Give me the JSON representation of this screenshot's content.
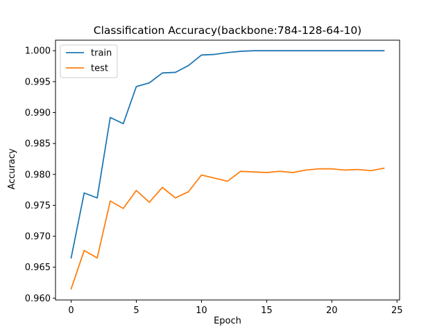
{
  "chart_data": {
    "type": "line",
    "title": "Classification Accuracy(backbone:784-128-64-10)",
    "xlabel": "Epoch",
    "ylabel": "Accuracy",
    "xlim": [
      -1.2,
      25.2
    ],
    "ylim": [
      0.9597,
      1.0017
    ],
    "xticks": [
      0,
      5,
      10,
      15,
      20,
      25
    ],
    "xtick_labels": [
      "0",
      "5",
      "10",
      "15",
      "20",
      "25"
    ],
    "yticks": [
      0.96,
      0.965,
      0.97,
      0.975,
      0.98,
      0.985,
      0.99,
      0.995,
      1.0
    ],
    "ytick_labels": [
      "0.960",
      "0.965",
      "0.970",
      "0.975",
      "0.980",
      "0.985",
      "0.990",
      "0.995",
      "1.000"
    ],
    "grid": false,
    "legend_position": "upper left",
    "x": [
      0,
      1,
      2,
      3,
      4,
      5,
      6,
      7,
      8,
      9,
      10,
      11,
      12,
      13,
      14,
      15,
      16,
      17,
      18,
      19,
      20,
      21,
      22,
      23,
      24
    ],
    "series": [
      {
        "name": "train",
        "color": "#1f77b4",
        "values": [
          0.9665,
          0.977,
          0.9762,
          0.9892,
          0.9882,
          0.9942,
          0.9948,
          0.9964,
          0.9965,
          0.9976,
          0.9993,
          0.9994,
          0.9997,
          0.9999,
          1.0,
          1.0,
          1.0,
          1.0,
          1.0,
          1.0,
          1.0,
          1.0,
          1.0,
          1.0,
          1.0
        ]
      },
      {
        "name": "test",
        "color": "#ff7f0e",
        "values": [
          0.9615,
          0.9677,
          0.9665,
          0.9757,
          0.9745,
          0.9774,
          0.9755,
          0.9779,
          0.9762,
          0.9772,
          0.9799,
          0.9794,
          0.9789,
          0.9805,
          0.9804,
          0.9803,
          0.9805,
          0.9803,
          0.9807,
          0.9809,
          0.9809,
          0.9807,
          0.9808,
          0.9806,
          0.981
        ]
      }
    ]
  }
}
